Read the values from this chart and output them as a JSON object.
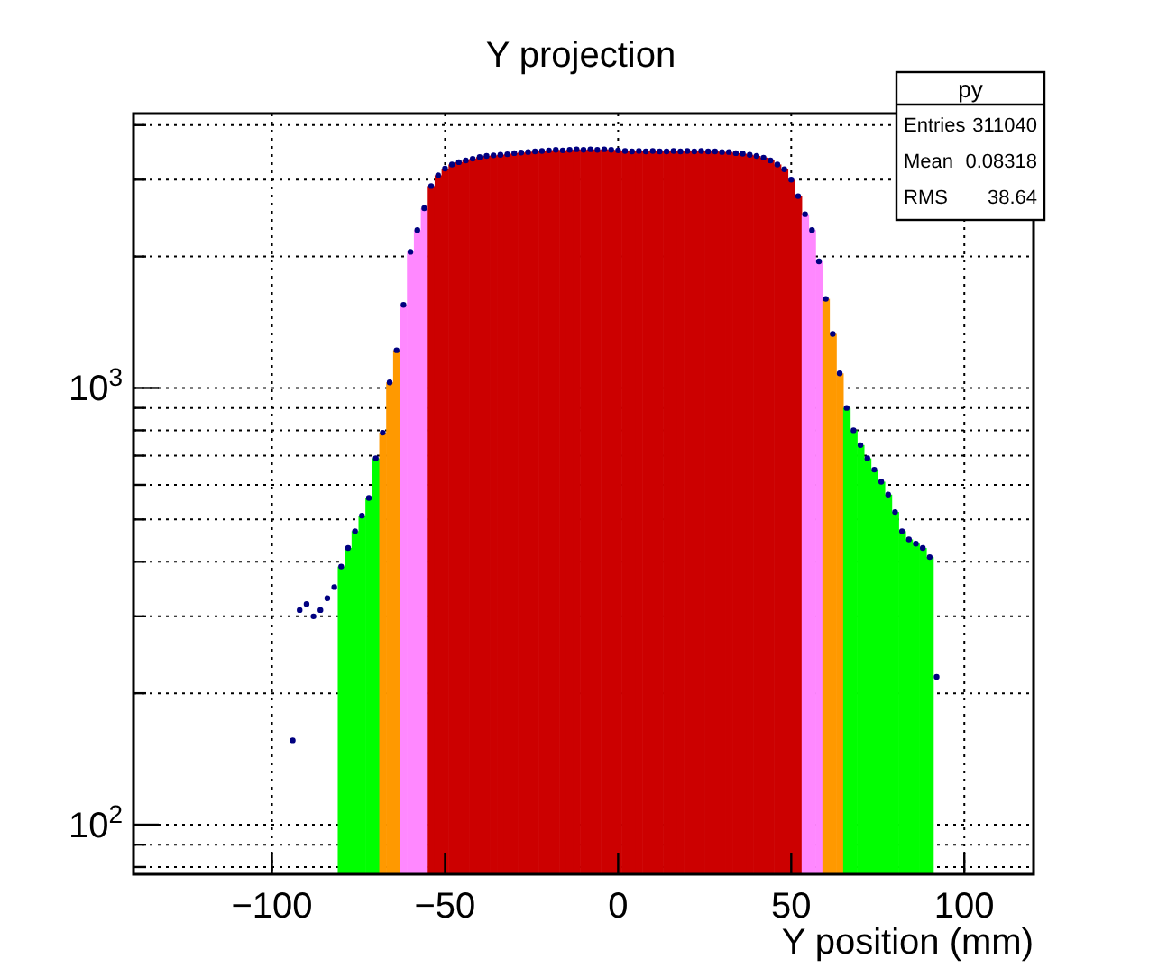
{
  "chart_data": {
    "type": "histogram",
    "title": "Y projection",
    "xlabel": "Y position (mm)",
    "series": [
      {
        "bins": [
          -81,
          -79,
          -77,
          -75,
          -73,
          -71,
          -69,
          -67,
          -65,
          -63,
          -61,
          -59,
          -57,
          -55,
          -53,
          -51,
          -49,
          -47,
          -45,
          -43,
          -41,
          -39,
          -37,
          -35,
          -33,
          -31,
          -29,
          -27,
          -25,
          -23,
          -21,
          -19,
          -17,
          -15,
          -13,
          -11,
          -9,
          -7,
          -5,
          -3,
          -1,
          1,
          3,
          5,
          7,
          9,
          11,
          13,
          15,
          17,
          19,
          21,
          23,
          25,
          27,
          29,
          31,
          33,
          35,
          37,
          39,
          41,
          43,
          45,
          47,
          49,
          51,
          53,
          55,
          57,
          59,
          61,
          63,
          65,
          67,
          69,
          71,
          73,
          75,
          77,
          79,
          81,
          83,
          85,
          87,
          89,
          91
        ],
        "values": [
          390,
          430,
          470,
          510,
          560,
          690,
          790,
          1030,
          1220,
          1550,
          2050,
          2300,
          2580,
          2900,
          3070,
          3180,
          3250,
          3290,
          3320,
          3350,
          3380,
          3400,
          3410,
          3420,
          3430,
          3450,
          3460,
          3470,
          3480,
          3490,
          3500,
          3510,
          3500,
          3510,
          3520,
          3510,
          3520,
          3510,
          3520,
          3510,
          3500,
          3490,
          3480,
          3490,
          3480,
          3490,
          3480,
          3480,
          3490,
          3480,
          3490,
          3480,
          3490,
          3480,
          3480,
          3470,
          3470,
          3450,
          3440,
          3420,
          3400,
          3370,
          3320,
          3250,
          3170,
          3000,
          2750,
          2500,
          2300,
          1950,
          1600,
          1330,
          1080,
          900,
          800,
          740,
          690,
          650,
          610,
          570,
          520,
          470,
          450,
          440,
          430,
          410
        ],
        "colors": [
          "#00ff00",
          "#00ff00",
          "#00ff00",
          "#00ff00",
          "#00ff00",
          "#00ff00",
          "#ff9900",
          "#ff9900",
          "#ff9900",
          "#ff88ff",
          "#ff88ff",
          "#ff88ff",
          "#ff88ff",
          "#cc0000",
          "#cc0000",
          "#cc0000",
          "#cc0000",
          "#cc0000",
          "#cc0000",
          "#cc0000",
          "#cc0000",
          "#cc0000",
          "#cc0000",
          "#cc0000",
          "#cc0000",
          "#cc0000",
          "#cc0000",
          "#cc0000",
          "#cc0000",
          "#cc0000",
          "#cc0000",
          "#cc0000",
          "#cc0000",
          "#cc0000",
          "#cc0000",
          "#cc0000",
          "#cc0000",
          "#cc0000",
          "#cc0000",
          "#cc0000",
          "#cc0000",
          "#cc0000",
          "#cc0000",
          "#cc0000",
          "#cc0000",
          "#cc0000",
          "#cc0000",
          "#cc0000",
          "#cc0000",
          "#cc0000",
          "#cc0000",
          "#cc0000",
          "#cc0000",
          "#cc0000",
          "#cc0000",
          "#cc0000",
          "#cc0000",
          "#cc0000",
          "#cc0000",
          "#cc0000",
          "#cc0000",
          "#cc0000",
          "#cc0000",
          "#cc0000",
          "#cc0000",
          "#cc0000",
          "#cc0000",
          "#ff88ff",
          "#ff88ff",
          "#ff88ff",
          "#ff9900",
          "#ff9900",
          "#ff9900",
          "#00ff00",
          "#00ff00",
          "#00ff00",
          "#00ff00",
          "#00ff00",
          "#00ff00",
          "#00ff00",
          "#00ff00",
          "#00ff00",
          "#00ff00",
          "#00ff00",
          "#00ff00",
          "#00ff00"
        ]
      },
      {
        "type": "scatter",
        "color": "#000080",
        "marker": "circle",
        "x": [
          -94,
          -92,
          -90,
          -88,
          -86,
          -84,
          -82,
          -80,
          -78,
          -76,
          -74,
          -72,
          -70,
          -68,
          -66,
          -64,
          -62,
          -60,
          -58,
          -56,
          -54,
          -52,
          -50,
          -48,
          -46,
          -44,
          -42,
          -40,
          -38,
          -36,
          -34,
          -32,
          -30,
          -28,
          -26,
          -24,
          -22,
          -20,
          -18,
          -16,
          -14,
          -12,
          -10,
          -8,
          -6,
          -4,
          -2,
          0,
          2,
          4,
          6,
          8,
          10,
          12,
          14,
          16,
          18,
          20,
          22,
          24,
          26,
          28,
          30,
          32,
          34,
          36,
          38,
          40,
          42,
          44,
          46,
          48,
          50,
          52,
          54,
          56,
          58,
          60,
          62,
          64,
          66,
          68,
          70,
          72,
          74,
          76,
          78,
          80,
          82,
          84,
          86,
          88,
          90,
          92
        ],
        "values": [
          156,
          310,
          320,
          300,
          310,
          330,
          350,
          390,
          430,
          470,
          510,
          560,
          690,
          790,
          1030,
          1220,
          1550,
          2050,
          2300,
          2580,
          2900,
          3070,
          3180,
          3250,
          3290,
          3320,
          3350,
          3380,
          3400,
          3410,
          3420,
          3430,
          3450,
          3460,
          3470,
          3480,
          3490,
          3500,
          3510,
          3500,
          3510,
          3520,
          3510,
          3520,
          3510,
          3520,
          3510,
          3500,
          3490,
          3480,
          3490,
          3480,
          3490,
          3480,
          3480,
          3490,
          3480,
          3490,
          3480,
          3490,
          3480,
          3480,
          3470,
          3470,
          3450,
          3440,
          3420,
          3400,
          3370,
          3320,
          3250,
          3170,
          3000,
          2750,
          2500,
          2300,
          1950,
          1600,
          1330,
          1080,
          900,
          800,
          740,
          690,
          650,
          610,
          570,
          520,
          470,
          450,
          440,
          430,
          410,
          218
        ]
      }
    ],
    "log": true,
    "grid": true,
    "xlim": [
      -140,
      120
    ],
    "xticks": [
      {
        "value": -100,
        "label": "−100"
      },
      {
        "value": -50,
        "label": "−50"
      },
      0,
      50,
      100
    ],
    "ylim": [
      77,
      4250
    ],
    "yticks": [
      {
        "value": 80,
        "label": null
      },
      {
        "value": 90,
        "label": null
      },
      {
        "value": 100,
        "label": "10$^{2}$"
      },
      {
        "value": 200,
        "label": null
      },
      {
        "value": 300,
        "label": null
      },
      {
        "value": 400,
        "label": null
      },
      {
        "value": 500,
        "label": null
      },
      {
        "value": 600,
        "label": null
      },
      {
        "value": 700,
        "label": null
      },
      {
        "value": 800,
        "label": null
      },
      {
        "value": 900,
        "label": null
      },
      {
        "value": 1000,
        "label": "10$^{3}$"
      },
      {
        "value": 2000,
        "label": null
      },
      {
        "value": 3000,
        "label": null
      },
      {
        "value": 4000,
        "label": null
      }
    ],
    "annotations": [
      "py",
      "Entries",
      "311040",
      "Mean",
      "0.08318",
      "RMS",
      "38.64"
    ]
  }
}
